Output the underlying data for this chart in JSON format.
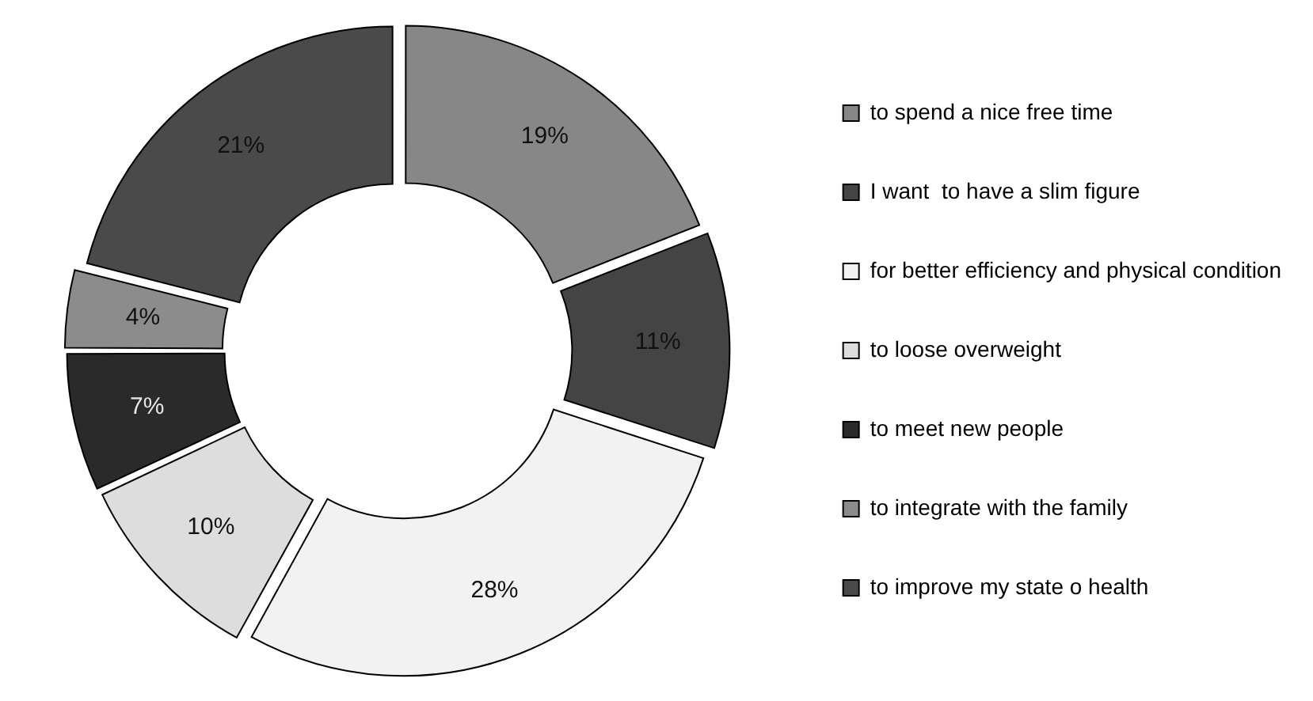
{
  "chart_data": {
    "type": "donut",
    "categories": [
      "to spend a nice free time",
      "I want  to have a slim figure",
      "for better efficiency and physical condition",
      "to loose overweight",
      "to meet new people",
      "to integrate with the family",
      "to improve my state o health"
    ],
    "values": [
      19,
      11,
      28,
      10,
      7,
      4,
      21
    ],
    "colors": [
      "#878787",
      "#444444",
      "#f2f2f2",
      "#dddddd",
      "#2a2a2a",
      "#8c8c8c",
      "#4a4a4a"
    ],
    "value_labels": [
      "19%",
      "11%",
      "28%",
      "10%",
      "7%",
      "4%",
      "21%"
    ],
    "legend": "right"
  }
}
